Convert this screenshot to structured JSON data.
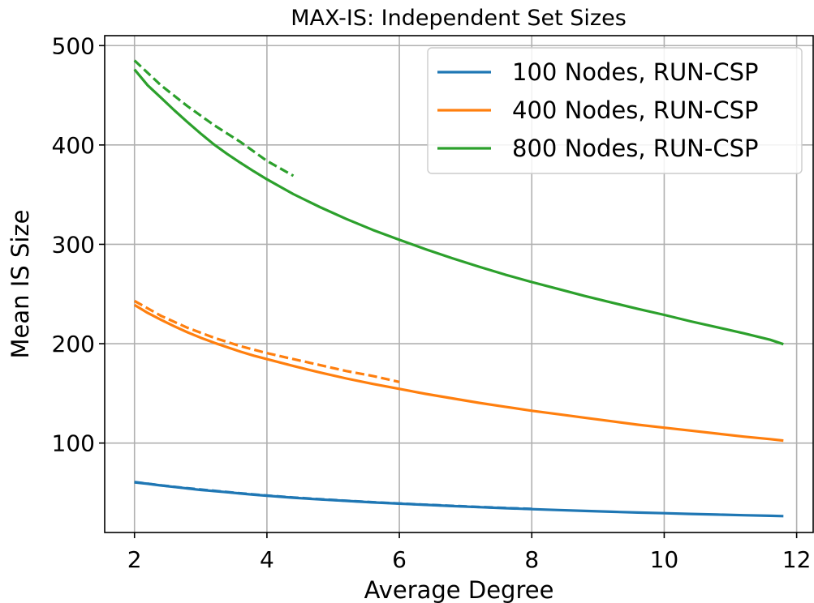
{
  "chart_data": {
    "type": "line",
    "title": "MAX-IS: Independent Set Sizes",
    "xlabel": "Average Degree",
    "ylabel": "Mean IS Size",
    "xlim": [
      1.55,
      12.25
    ],
    "ylim": [
      10,
      510
    ],
    "xticks": [
      2,
      4,
      6,
      8,
      10,
      12
    ],
    "yticks": [
      100,
      200,
      300,
      400,
      500
    ],
    "grid": true,
    "legend_position": "top-right",
    "series": [
      {
        "name": "100 Nodes, RUN-CSP",
        "color": "#1f77b4",
        "style": "solid",
        "x": [
          2.0,
          2.2,
          2.4,
          2.6,
          2.8,
          3.0,
          3.2,
          3.4,
          3.6,
          3.8,
          4.0,
          4.4,
          4.8,
          5.2,
          5.6,
          6.0,
          6.4,
          6.8,
          7.2,
          7.6,
          8.0,
          8.4,
          8.8,
          9.2,
          9.6,
          10.0,
          10.4,
          10.8,
          11.2,
          11.6,
          11.8
        ],
        "y": [
          60.5,
          59.0,
          57.3,
          55.8,
          54.3,
          52.8,
          51.7,
          50.5,
          49.2,
          48.0,
          47.0,
          45.0,
          43.3,
          41.8,
          40.3,
          39.0,
          37.8,
          36.6,
          35.5,
          34.5,
          33.5,
          32.6,
          31.7,
          30.9,
          30.1,
          29.4,
          28.7,
          28.0,
          27.4,
          26.8,
          26.5
        ]
      },
      {
        "name": "",
        "color": "#1f77b4",
        "style": "dashed",
        "x": [
          2.0,
          2.4,
          2.8,
          3.2,
          3.6,
          4.0,
          4.4,
          4.8,
          5.2,
          5.6,
          6.0,
          6.4,
          6.8,
          7.2,
          7.6,
          8.0
        ],
        "y": [
          60.8,
          57.5,
          54.5,
          52.0,
          49.5,
          47.2,
          45.2,
          43.5,
          42.0,
          40.5,
          39.2,
          38.0,
          36.8,
          35.7,
          34.7,
          33.7
        ]
      },
      {
        "name": "400 Nodes, RUN-CSP",
        "color": "#ff7f0e",
        "style": "solid",
        "x": [
          2.0,
          2.2,
          2.4,
          2.6,
          2.8,
          3.0,
          3.2,
          3.4,
          3.6,
          3.8,
          4.0,
          4.4,
          4.8,
          5.2,
          5.6,
          6.0,
          6.4,
          6.8,
          7.2,
          7.6,
          8.0,
          8.4,
          8.8,
          9.2,
          9.6,
          10.0,
          10.4,
          10.8,
          11.2,
          11.6,
          11.8
        ],
        "y": [
          239.0,
          231.0,
          224.0,
          217.5,
          211.5,
          206.0,
          201.0,
          196.5,
          192.0,
          188.0,
          184.5,
          177.5,
          171.0,
          165.0,
          159.5,
          154.5,
          149.5,
          145.0,
          140.5,
          136.5,
          132.5,
          129.0,
          125.5,
          122.0,
          118.5,
          115.5,
          112.5,
          109.5,
          106.5,
          104.0,
          102.5
        ]
      },
      {
        "name": "",
        "color": "#ff7f0e",
        "style": "dashed",
        "x": [
          2.0,
          2.4,
          2.8,
          3.2,
          3.6,
          4.0,
          4.4,
          4.8,
          5.2,
          5.6,
          6.0
        ],
        "y": [
          243.0,
          228.0,
          216.0,
          206.0,
          197.5,
          190.5,
          184.5,
          178.5,
          172.5,
          167.5,
          161.5
        ]
      },
      {
        "name": "800 Nodes, RUN-CSP",
        "color": "#2ca02c",
        "style": "solid",
        "x": [
          2.0,
          2.2,
          2.4,
          2.6,
          2.8,
          3.0,
          3.2,
          3.4,
          3.6,
          3.8,
          4.0,
          4.2,
          4.4,
          4.6,
          4.8,
          5.2,
          5.6,
          6.0,
          6.4,
          6.8,
          7.2,
          7.6,
          8.0,
          8.4,
          8.8,
          9.2,
          9.6,
          10.0,
          10.4,
          10.8,
          11.2,
          11.6,
          11.8
        ],
        "y": [
          476.0,
          460.0,
          447.5,
          435.0,
          423.0,
          411.5,
          400.5,
          391.0,
          382.0,
          373.5,
          365.5,
          358.0,
          350.5,
          344.0,
          337.5,
          325.5,
          314.5,
          304.5,
          295.0,
          286.0,
          277.5,
          269.5,
          262.0,
          255.0,
          248.0,
          241.5,
          235.0,
          229.0,
          222.5,
          216.5,
          210.5,
          204.0,
          199.5
        ]
      },
      {
        "name": "",
        "color": "#2ca02c",
        "style": "dashed",
        "x": [
          2.0,
          2.4,
          2.8,
          3.2,
          3.6,
          4.0,
          4.4
        ],
        "y": [
          485.0,
          460.0,
          439.0,
          420.0,
          403.0,
          384.0,
          369.0
        ]
      }
    ]
  }
}
